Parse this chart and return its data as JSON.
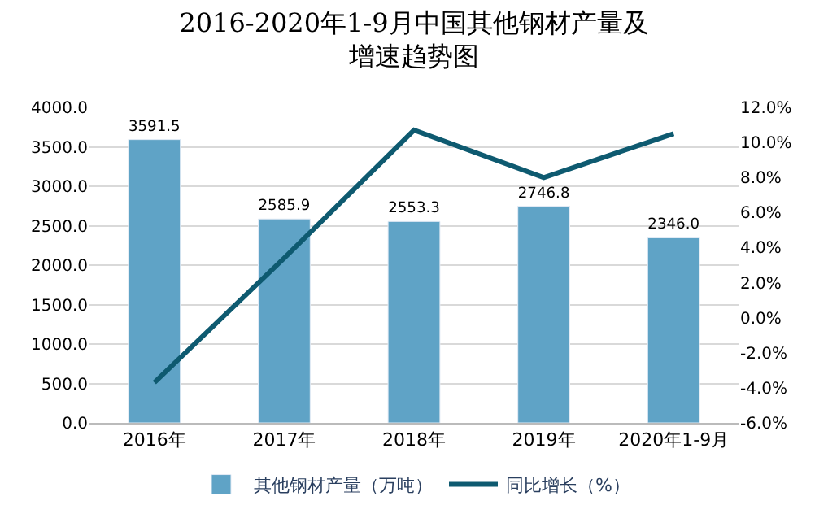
{
  "chart_data": {
    "type": "bar",
    "title": "2016-2020年1-9月中国其他钢材产量及增速趋势图",
    "categories": [
      "2016年",
      "2017年",
      "2018年",
      "2019年",
      "2020年1-9月"
    ],
    "series": [
      {
        "name": "其他钢材产量（万吨）",
        "color": "#5fa3c6",
        "values": [
          3591.5,
          2585.9,
          2553.3,
          2746.8,
          2346.0
        ],
        "value_labels": [
          "3591.5",
          "2585.9",
          "2553.3",
          "2746.8",
          "2346.0"
        ]
      },
      {
        "name": "同比增长（%）",
        "type": "line",
        "axis": "y2",
        "color": "#0e5a70",
        "values": [
          -3.7,
          3.4,
          10.7,
          8.0,
          10.5
        ]
      }
    ],
    "ylim": [
      0,
      4000
    ],
    "yticks": [
      {
        "value": 0,
        "label": "0.0"
      },
      {
        "value": 500,
        "label": "500.0"
      },
      {
        "value": 1000,
        "label": "1000.0"
      },
      {
        "value": 1500,
        "label": "1500.0"
      },
      {
        "value": 2000,
        "label": "2000.0"
      },
      {
        "value": 2500,
        "label": "2500.0"
      },
      {
        "value": 3000,
        "label": "3000.0"
      },
      {
        "value": 3500,
        "label": "3500.0"
      },
      {
        "value": 4000,
        "label": "4000.0"
      }
    ],
    "y2lim": [
      -6,
      12
    ],
    "y2ticks": [
      {
        "value": -6,
        "label": "-6.0%"
      },
      {
        "value": -4,
        "label": "-4.0%"
      },
      {
        "value": -2,
        "label": "-2.0%"
      },
      {
        "value": 0,
        "label": "0.0%"
      },
      {
        "value": 2,
        "label": "2.0%"
      },
      {
        "value": 4,
        "label": "4.0%"
      },
      {
        "value": 6,
        "label": "6.0%"
      },
      {
        "value": 8,
        "label": "8.0%"
      },
      {
        "value": 10,
        "label": "10.0%"
      },
      {
        "value": 12,
        "label": "12.0%"
      }
    ],
    "grid": "y",
    "legend": "bottom",
    "marker": "none",
    "line_style": "solid"
  }
}
